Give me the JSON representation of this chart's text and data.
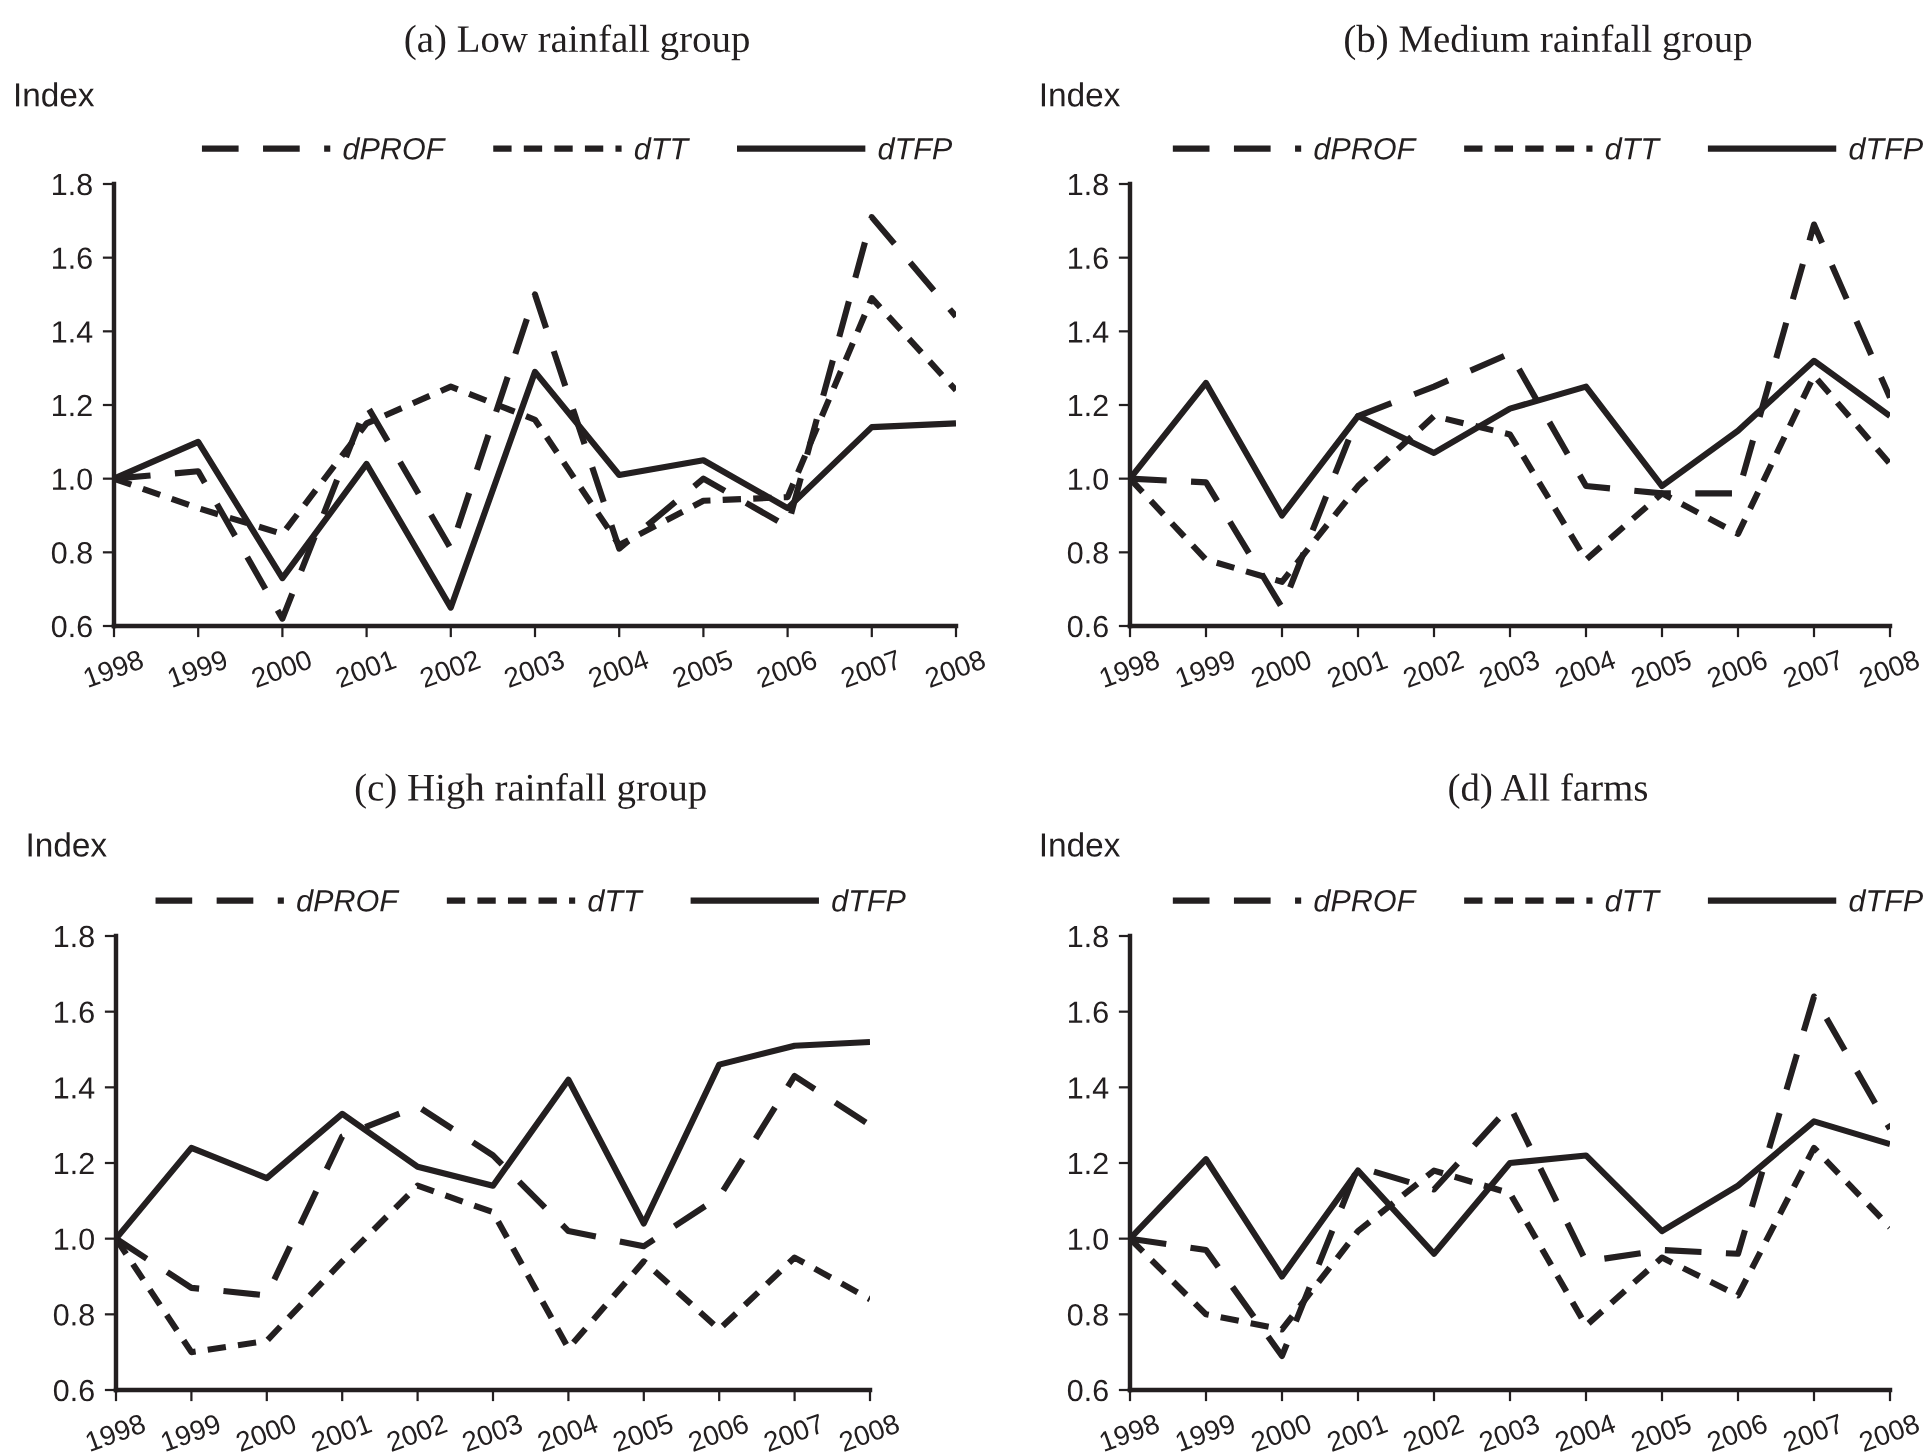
{
  "chart_data": [
    {
      "type": "line",
      "title": "(a) Low rainfall group",
      "ylabel": "Index",
      "categories": [
        "1998",
        "1999",
        "2000",
        "2001",
        "2002",
        "2003",
        "2004",
        "2005",
        "2006",
        "2007",
        "2008"
      ],
      "ylim": [
        0.6,
        1.8
      ],
      "yticks": [
        {
          "value": 0.6,
          "label": "0.6"
        },
        {
          "value": 0.8,
          "label": "0.8"
        },
        {
          "value": 1.0,
          "label": "1.0"
        },
        {
          "value": 1.2,
          "label": "1.2"
        },
        {
          "value": 1.4,
          "label": "1.4"
        },
        {
          "value": 1.6,
          "label": "1.6"
        },
        {
          "value": 1.8,
          "label": "1.8"
        }
      ],
      "grid": false,
      "legend": "top",
      "marker": "none",
      "series": [
        {
          "name": "dPROF",
          "color": "#231f20",
          "line_style": "dashed",
          "values": [
            1.0,
            1.02,
            0.62,
            1.2,
            0.81,
            1.5,
            0.81,
            1.0,
            0.87,
            1.71,
            1.44
          ]
        },
        {
          "name": "dTT",
          "color": "#231f20",
          "line_style": "dotted",
          "values": [
            1.0,
            0.92,
            0.85,
            1.15,
            1.25,
            1.16,
            0.82,
            0.94,
            0.95,
            1.49,
            1.24
          ]
        },
        {
          "name": "dTFP",
          "color": "#231f20",
          "line_style": "solid",
          "values": [
            1.0,
            1.1,
            0.73,
            1.04,
            0.65,
            1.29,
            1.01,
            1.05,
            0.92,
            1.14,
            1.15
          ]
        }
      ]
    },
    {
      "type": "line",
      "title": "(b) Medium rainfall group",
      "ylabel": "Index",
      "categories": [
        "1998",
        "1999",
        "2000",
        "2001",
        "2002",
        "2003",
        "2004",
        "2005",
        "2006",
        "2007",
        "2008"
      ],
      "ylim": [
        0.6,
        1.8
      ],
      "yticks": [
        {
          "value": 0.6,
          "label": "0.6"
        },
        {
          "value": 0.8,
          "label": "0.8"
        },
        {
          "value": 1.0,
          "label": "1.0"
        },
        {
          "value": 1.2,
          "label": "1.2"
        },
        {
          "value": 1.4,
          "label": "1.4"
        },
        {
          "value": 1.6,
          "label": "1.6"
        },
        {
          "value": 1.8,
          "label": "1.8"
        }
      ],
      "grid": false,
      "legend": "top",
      "marker": "none",
      "series": [
        {
          "name": "dPROF",
          "color": "#231f20",
          "line_style": "dashed",
          "values": [
            1.0,
            0.99,
            0.65,
            1.17,
            1.25,
            1.34,
            0.98,
            0.96,
            0.96,
            1.69,
            1.22
          ]
        },
        {
          "name": "dTT",
          "color": "#231f20",
          "line_style": "dotted",
          "values": [
            1.0,
            0.78,
            0.72,
            0.98,
            1.17,
            1.12,
            0.78,
            0.96,
            0.85,
            1.28,
            1.04
          ]
        },
        {
          "name": "dTFP",
          "color": "#231f20",
          "line_style": "solid",
          "values": [
            1.0,
            1.26,
            0.9,
            1.17,
            1.07,
            1.19,
            1.25,
            0.98,
            1.13,
            1.32,
            1.17
          ]
        }
      ]
    },
    {
      "type": "line",
      "title": "(c) High rainfall group",
      "ylabel": "Index",
      "categories": [
        "1998",
        "1999",
        "2000",
        "2001",
        "2002",
        "2003",
        "2004",
        "2005",
        "2006",
        "2007",
        "2008"
      ],
      "ylim": [
        0.6,
        1.8
      ],
      "yticks": [
        {
          "value": 0.6,
          "label": "0.6"
        },
        {
          "value": 0.8,
          "label": "0.8"
        },
        {
          "value": 1.0,
          "label": "1.0"
        },
        {
          "value": 1.2,
          "label": "1.2"
        },
        {
          "value": 1.4,
          "label": "1.4"
        },
        {
          "value": 1.6,
          "label": "1.6"
        },
        {
          "value": 1.8,
          "label": "1.8"
        }
      ],
      "grid": false,
      "legend": "top",
      "marker": "none",
      "series": [
        {
          "name": "dPROF",
          "color": "#231f20",
          "line_style": "dashed",
          "values": [
            1.0,
            0.87,
            0.85,
            1.27,
            1.35,
            1.22,
            1.02,
            0.98,
            1.11,
            1.43,
            1.3
          ]
        },
        {
          "name": "dTT",
          "color": "#231f20",
          "line_style": "dotted",
          "values": [
            1.0,
            0.7,
            0.73,
            0.94,
            1.14,
            1.07,
            0.71,
            0.94,
            0.76,
            0.95,
            0.84
          ]
        },
        {
          "name": "dTFP",
          "color": "#231f20",
          "line_style": "solid",
          "values": [
            1.0,
            1.24,
            1.16,
            1.33,
            1.19,
            1.14,
            1.42,
            1.04,
            1.46,
            1.51,
            1.52
          ]
        }
      ]
    },
    {
      "type": "line",
      "title": "(d) All farms",
      "ylabel": "Index",
      "categories": [
        "1998",
        "1999",
        "2000",
        "2001",
        "2002",
        "2003",
        "2004",
        "2005",
        "2006",
        "2007",
        "2008"
      ],
      "ylim": [
        0.6,
        1.8
      ],
      "yticks": [
        {
          "value": 0.6,
          "label": "0.6"
        },
        {
          "value": 0.8,
          "label": "0.8"
        },
        {
          "value": 1.0,
          "label": "1.0"
        },
        {
          "value": 1.2,
          "label": "1.2"
        },
        {
          "value": 1.4,
          "label": "1.4"
        },
        {
          "value": 1.6,
          "label": "1.6"
        },
        {
          "value": 1.8,
          "label": "1.8"
        }
      ],
      "grid": false,
      "legend": "top",
      "marker": "none",
      "series": [
        {
          "name": "dPROF",
          "color": "#231f20",
          "line_style": "dashed",
          "values": [
            1.0,
            0.97,
            0.69,
            1.19,
            1.13,
            1.35,
            0.94,
            0.97,
            0.96,
            1.64,
            1.29
          ]
        },
        {
          "name": "dTT",
          "color": "#231f20",
          "line_style": "dotted",
          "values": [
            1.0,
            0.8,
            0.76,
            1.02,
            1.18,
            1.12,
            0.77,
            0.95,
            0.85,
            1.24,
            1.03
          ]
        },
        {
          "name": "dTFP",
          "color": "#231f20",
          "line_style": "solid",
          "values": [
            1.0,
            1.21,
            0.9,
            1.18,
            0.96,
            1.2,
            1.22,
            1.02,
            1.14,
            1.31,
            1.25
          ]
        }
      ]
    }
  ]
}
